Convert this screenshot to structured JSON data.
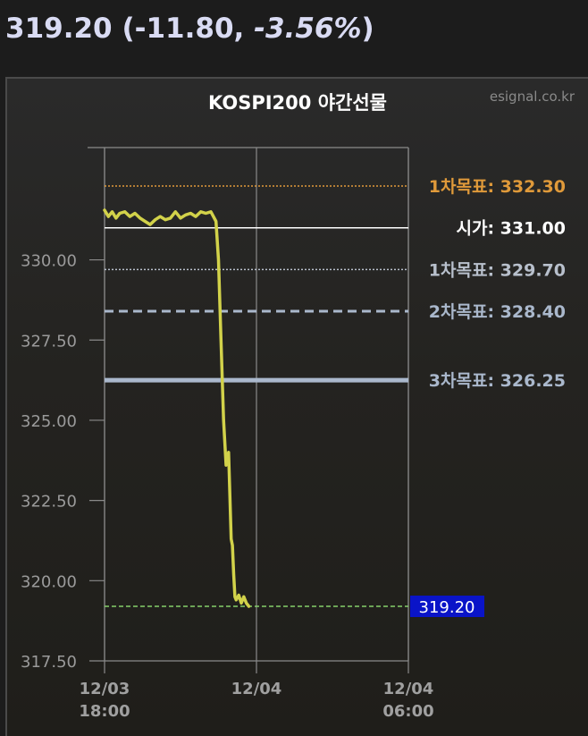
{
  "quote": {
    "price": "319.20",
    "change": "(-11.80, ",
    "change_pct": "-3.56%",
    "close_paren": ")"
  },
  "chart_data": {
    "type": "line",
    "title": "KOSPI200 야간선물",
    "source": "esignal.co.kr",
    "ylim": [
      317.5,
      333.5
    ],
    "y_ticks": [
      317.5,
      320.0,
      322.5,
      325.0,
      327.5,
      330.0
    ],
    "y_tick_labels": [
      "317.50",
      "320.00",
      "322.50",
      "325.00",
      "327.50",
      "330.00"
    ],
    "x_ticks": [
      {
        "line1": "12/03",
        "line2": "18:00"
      },
      {
        "line1": "12/04",
        "line2": ""
      },
      {
        "line1": "12/04",
        "line2": "06:00"
      }
    ],
    "x_range_hours": [
      0,
      12
    ],
    "grid": true,
    "reference_lines": [
      {
        "label": "1차목표: 332.30",
        "value": 332.3,
        "color": "#e09a3a",
        "style": "dotted"
      },
      {
        "label": "시가: 331.00",
        "value": 331.0,
        "color": "#ffffff",
        "style": "solid-thin"
      },
      {
        "label": "1차목표: 329.70",
        "value": 329.7,
        "color": "#b8c0cc",
        "style": "dotted"
      },
      {
        "label": "2차목표: 328.40",
        "value": 328.4,
        "color": "#aab8cc",
        "style": "dashed"
      },
      {
        "label": "3차목표: 326.25",
        "value": 326.25,
        "color": "#aab8cc",
        "style": "solid-thick"
      }
    ],
    "last_value": 319.2,
    "last_label": "319.20",
    "last_color": "#0a14c8",
    "series": [
      {
        "color": "#d2d24a",
        "x": [
          0.0,
          0.15,
          0.3,
          0.45,
          0.6,
          0.8,
          1.0,
          1.2,
          1.4,
          1.6,
          1.8,
          2.0,
          2.2,
          2.4,
          2.6,
          2.8,
          3.0,
          3.2,
          3.4,
          3.6,
          3.8,
          4.0,
          4.2,
          4.4,
          4.5,
          4.6,
          4.7,
          4.8,
          4.9,
          5.0,
          5.05,
          5.1,
          5.15,
          5.2,
          5.3,
          5.4,
          5.5,
          5.6,
          5.7
        ],
        "values": [
          331.55,
          331.35,
          331.5,
          331.3,
          331.45,
          331.5,
          331.35,
          331.45,
          331.3,
          331.2,
          331.1,
          331.25,
          331.35,
          331.25,
          331.3,
          331.5,
          331.3,
          331.4,
          331.45,
          331.35,
          331.5,
          331.45,
          331.5,
          331.2,
          330.0,
          327.5,
          325.0,
          323.6,
          324.0,
          321.3,
          321.1,
          320.2,
          319.5,
          319.4,
          319.55,
          319.3,
          319.5,
          319.3,
          319.2
        ]
      }
    ]
  }
}
